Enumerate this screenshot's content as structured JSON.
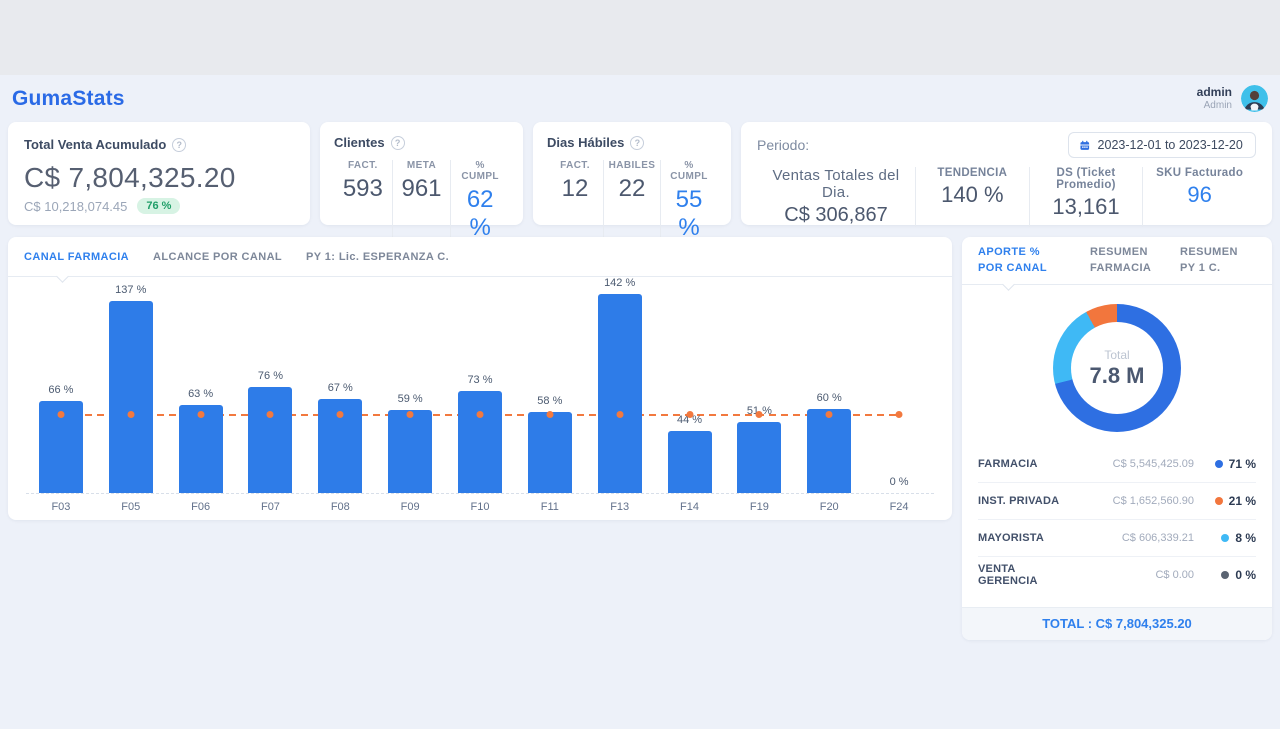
{
  "header": {
    "brand": "GumaStats",
    "user_name": "admin",
    "user_role": "Admin"
  },
  "cards": {
    "total": {
      "title": "Total Venta Acumulado",
      "value": "C$ 7,804,325.20",
      "previous": "C$ 10,218,074.45",
      "badge": "76 %"
    },
    "clientes": {
      "title": "Clientes",
      "stats": [
        {
          "label": "FACT.",
          "value": "593"
        },
        {
          "label": "META",
          "value": "961"
        },
        {
          "label": "% CUMPL",
          "value": "62 %"
        }
      ]
    },
    "dias": {
      "title": "Dias Hábiles",
      "stats": [
        {
          "label": "FACT.",
          "value": "12"
        },
        {
          "label": "HABILES",
          "value": "22"
        },
        {
          "label": "% CUMPL",
          "value": "55 %"
        }
      ]
    },
    "periodo": {
      "title": "Periodo:",
      "date_range": "2023-12-01 to 2023-12-20",
      "stats": [
        {
          "label": "Ventas Totales del Dia.",
          "value": "C$ 306,867"
        },
        {
          "label": "TENDENCIA",
          "value": "140 %"
        },
        {
          "label": "DS (Ticket Promedio)",
          "value": "13,161"
        },
        {
          "label": "SKU Facturado",
          "value": "96"
        }
      ]
    }
  },
  "main_panel": {
    "tabs": [
      {
        "label": "CANAL FARMACIA",
        "active": true
      },
      {
        "label": "ALCANCE POR CANAL",
        "active": false
      },
      {
        "label": "PY 1: Lic. ESPERANZA C.",
        "active": false
      }
    ]
  },
  "side_panel": {
    "tabs": [
      {
        "label": "APORTE % POR CANAL",
        "active": true
      },
      {
        "label": "RESUMEN FARMACIA",
        "active": false
      },
      {
        "label": "RESUMEN PY 1 C.",
        "active": false
      }
    ],
    "total_label": "TOTAL : C$ 7,804,325.20"
  },
  "chart_data": [
    {
      "type": "bar",
      "title": "CANAL FARMACIA",
      "categories": [
        "F03",
        "F05",
        "F06",
        "F07",
        "F08",
        "F09",
        "F10",
        "F11",
        "F13",
        "F14",
        "F19",
        "F20",
        "F24"
      ],
      "values": [
        66,
        137,
        63,
        76,
        67,
        59,
        73,
        58,
        142,
        44,
        51,
        60,
        0
      ],
      "unit": "%",
      "value_label_suffix": " %",
      "ylim": [
        0,
        150
      ],
      "target_line": 55,
      "bar_color": "#2e7ce8",
      "target_color": "#f2793f",
      "grid": false,
      "value_labels": true,
      "legend_position": "none"
    },
    {
      "type": "pie",
      "title": "APORTE % POR CANAL",
      "labels": [
        "FARMACIA",
        "INST. PRIVADA",
        "MAYORISTA",
        "VENTA GERENCIA"
      ],
      "values": [
        71,
        21,
        8,
        0
      ],
      "amounts": [
        "C$ 5,545,425.09",
        "C$ 1,652,560.90",
        "C$ 606,339.21",
        "C$ 0.00"
      ],
      "pct_labels": [
        "71 %",
        "21 %",
        "8 %",
        "0 %"
      ],
      "dot_colors": [
        "#2e6fe2",
        "#f2763d",
        "#3fb9f5",
        "#5b6472"
      ],
      "ring_segments": [
        {
          "pct": 71,
          "color": "#2e6fe2"
        },
        {
          "pct": 21,
          "color": "#3fb9f5"
        },
        {
          "pct": 8,
          "color": "#f2763d"
        }
      ],
      "center_label": "Total",
      "center_value": "7.8 M",
      "total": "C$ 7,804,325.20",
      "legend_position": "bottom-table"
    }
  ],
  "colors": {
    "accent": "#2f80ed",
    "bar": "#2e7ce8",
    "orange": "#f2793f",
    "lightblue": "#3fb9f5",
    "badge_bg": "#d7f3e4",
    "badge_text": "#1f9e68"
  }
}
